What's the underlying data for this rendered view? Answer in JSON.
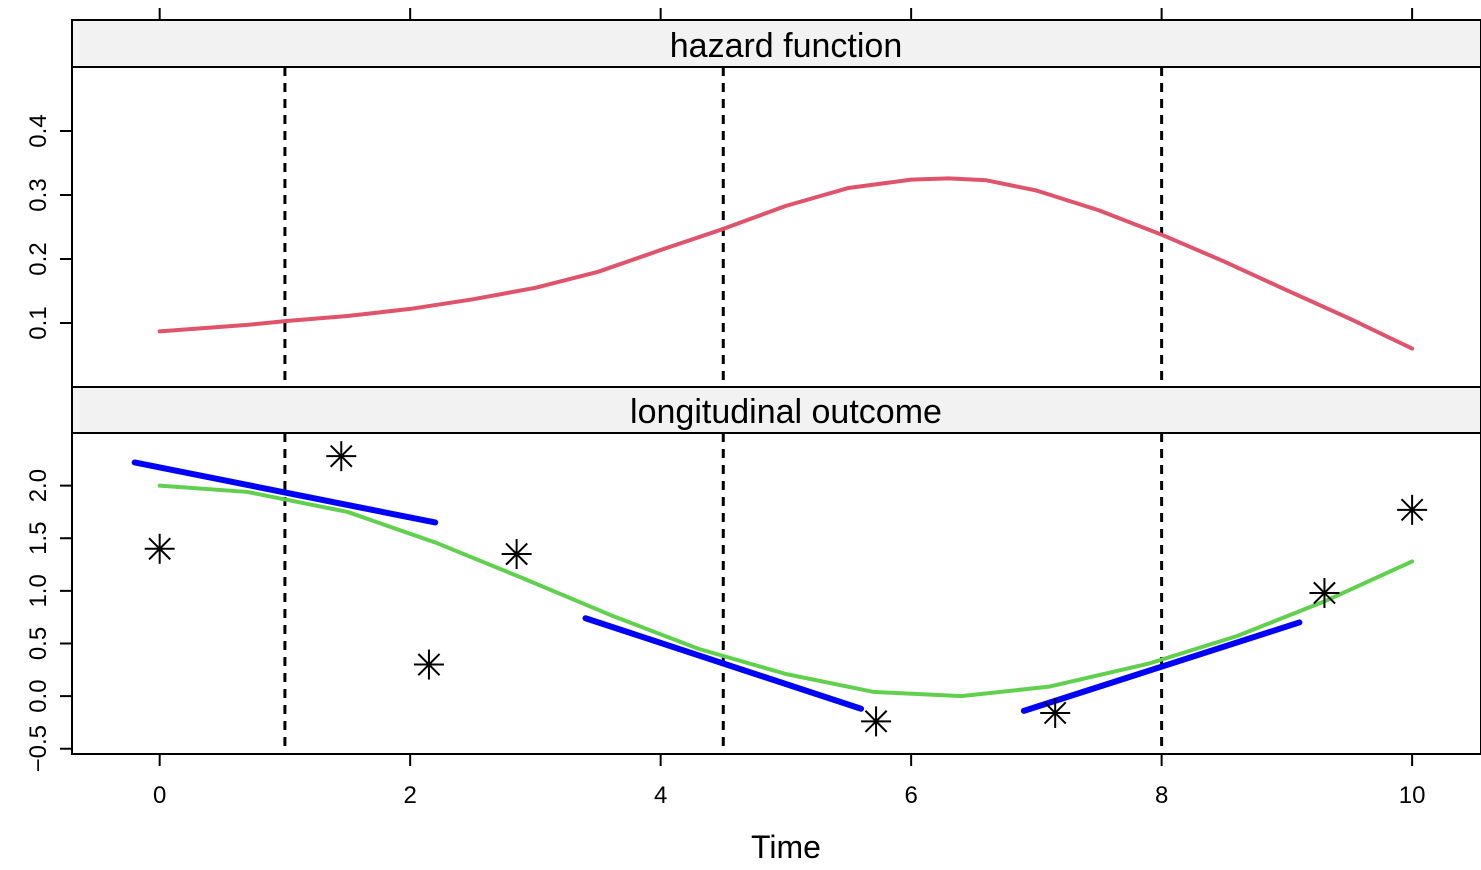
{
  "chart_data": {
    "type": "line",
    "xlabel": "Time",
    "xlim": [
      -0.7,
      10.55
    ],
    "x_ticks": [
      0,
      2,
      4,
      6,
      8,
      10
    ],
    "x_tick_labels": [
      "0",
      "2",
      "4",
      "6",
      "8",
      "10"
    ],
    "vlines": [
      1.0,
      4.5,
      8.0
    ],
    "panels": [
      {
        "strip": "hazard function",
        "ylim": [
          0.0,
          0.5
        ],
        "y_ticks": [
          0.1,
          0.2,
          0.3,
          0.4
        ],
        "y_tick_labels": [
          "0.1",
          "0.2",
          "0.3",
          "0.4"
        ],
        "series": [
          {
            "color": "#DF536B",
            "x": [
              0,
              0.7,
              1.0,
              1.5,
              2.0,
              2.5,
              3.0,
              3.5,
              4.0,
              4.5,
              5.0,
              5.5,
              6.0,
              6.3,
              6.6,
              7.0,
              7.5,
              8.0,
              8.5,
              9.0,
              9.5,
              10.0
            ],
            "y": [
              0.087,
              0.097,
              0.103,
              0.111,
              0.122,
              0.137,
              0.155,
              0.18,
              0.214,
              0.247,
              0.283,
              0.311,
              0.324,
              0.326,
              0.323,
              0.307,
              0.276,
              0.238,
              0.196,
              0.151,
              0.107,
              0.06
            ]
          }
        ]
      },
      {
        "strip": "longitudinal outcome",
        "ylim": [
          -0.55,
          2.5
        ],
        "y_ticks": [
          -0.5,
          0.0,
          0.5,
          1.0,
          1.5,
          2.0
        ],
        "y_tick_labels": [
          "−0.5",
          "0.0",
          "0.5",
          "1.0",
          "1.5",
          "2.0"
        ],
        "series": [
          {
            "color": "#61D04F",
            "x": [
              0,
              0.7,
              1.5,
              2.2,
              2.9,
              3.6,
              4.3,
              5.0,
              5.7,
              6.4,
              7.1,
              7.9,
              8.6,
              9.3,
              10.0
            ],
            "y": [
              2.0,
              1.94,
              1.75,
              1.46,
              1.12,
              0.77,
              0.45,
              0.21,
              0.04,
              0.0,
              0.09,
              0.31,
              0.57,
              0.9,
              1.28
            ]
          },
          {
            "color": "#0000FF",
            "segments": [
              {
                "x": [
                  -0.2,
                  2.2
                ],
                "y": [
                  2.22,
                  1.65
                ]
              },
              {
                "x": [
                  3.4,
                  5.6
                ],
                "y": [
                  0.74,
                  -0.12
                ]
              },
              {
                "x": [
                  6.9,
                  9.1
                ],
                "y": [
                  -0.14,
                  0.7
                ]
              }
            ]
          },
          {
            "marker": "asterisk",
            "color": "#000000",
            "x": [
              0.0,
              1.45,
              2.15,
              2.85,
              5.72,
              7.15,
              9.3,
              10.0
            ],
            "y": [
              1.4,
              2.28,
              0.3,
              1.35,
              -0.24,
              -0.16,
              0.98,
              1.77
            ]
          }
        ]
      }
    ]
  }
}
